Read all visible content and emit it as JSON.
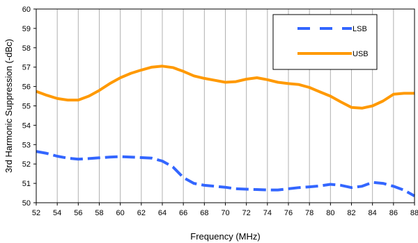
{
  "chart_data": {
    "type": "line",
    "title": "",
    "xlabel": "Frequency (MHz)",
    "ylabel": "3rd Harmonic Suppression (-dBc)",
    "xlim": [
      52,
      88
    ],
    "ylim": [
      50,
      60
    ],
    "xticks": [
      "52",
      "54",
      "56",
      "58",
      "60",
      "62",
      "64",
      "66",
      "68",
      "70",
      "72",
      "74",
      "76",
      "78",
      "80",
      "82",
      "84",
      "86",
      "88"
    ],
    "yticks": [
      "50",
      "51",
      "52",
      "53",
      "54",
      "55",
      "56",
      "57",
      "58",
      "59",
      "60"
    ],
    "grid": {
      "vertical": true,
      "horizontal": false
    },
    "legend_position": "top-right",
    "series": [
      {
        "name": "LSB",
        "color": "#3366FF",
        "style": "dashed",
        "x": [
          52,
          53,
          54,
          55,
          56,
          57,
          58,
          59,
          60,
          61,
          62,
          63,
          64,
          65,
          66,
          67,
          68,
          69,
          70,
          71,
          72,
          73,
          74,
          75,
          76,
          77,
          78,
          79,
          80,
          81,
          82,
          83,
          84,
          85,
          86,
          87,
          88
        ],
        "y": [
          52.65,
          52.55,
          52.4,
          52.3,
          52.25,
          52.28,
          52.32,
          52.36,
          52.38,
          52.36,
          52.33,
          52.3,
          52.15,
          51.85,
          51.3,
          51.0,
          50.9,
          50.85,
          50.8,
          50.72,
          50.7,
          50.68,
          50.66,
          50.66,
          50.72,
          50.78,
          50.82,
          50.87,
          50.95,
          50.9,
          50.78,
          50.85,
          51.05,
          51.0,
          50.85,
          50.65,
          50.35
        ]
      },
      {
        "name": "USB",
        "color": "#FF9900",
        "style": "solid",
        "x": [
          52,
          53,
          54,
          55,
          56,
          57,
          58,
          59,
          60,
          61,
          62,
          63,
          64,
          65,
          66,
          67,
          68,
          69,
          70,
          71,
          72,
          73,
          74,
          75,
          76,
          77,
          78,
          79,
          80,
          81,
          82,
          83,
          84,
          85,
          86,
          87,
          88
        ],
        "y": [
          55.75,
          55.55,
          55.38,
          55.3,
          55.3,
          55.5,
          55.8,
          56.15,
          56.45,
          56.68,
          56.85,
          57.0,
          57.05,
          56.98,
          56.78,
          56.55,
          56.42,
          56.32,
          56.22,
          56.25,
          56.38,
          56.45,
          56.35,
          56.22,
          56.15,
          56.1,
          55.95,
          55.72,
          55.5,
          55.2,
          54.92,
          54.88,
          55.0,
          55.25,
          55.6,
          55.65,
          55.65
        ]
      }
    ]
  }
}
